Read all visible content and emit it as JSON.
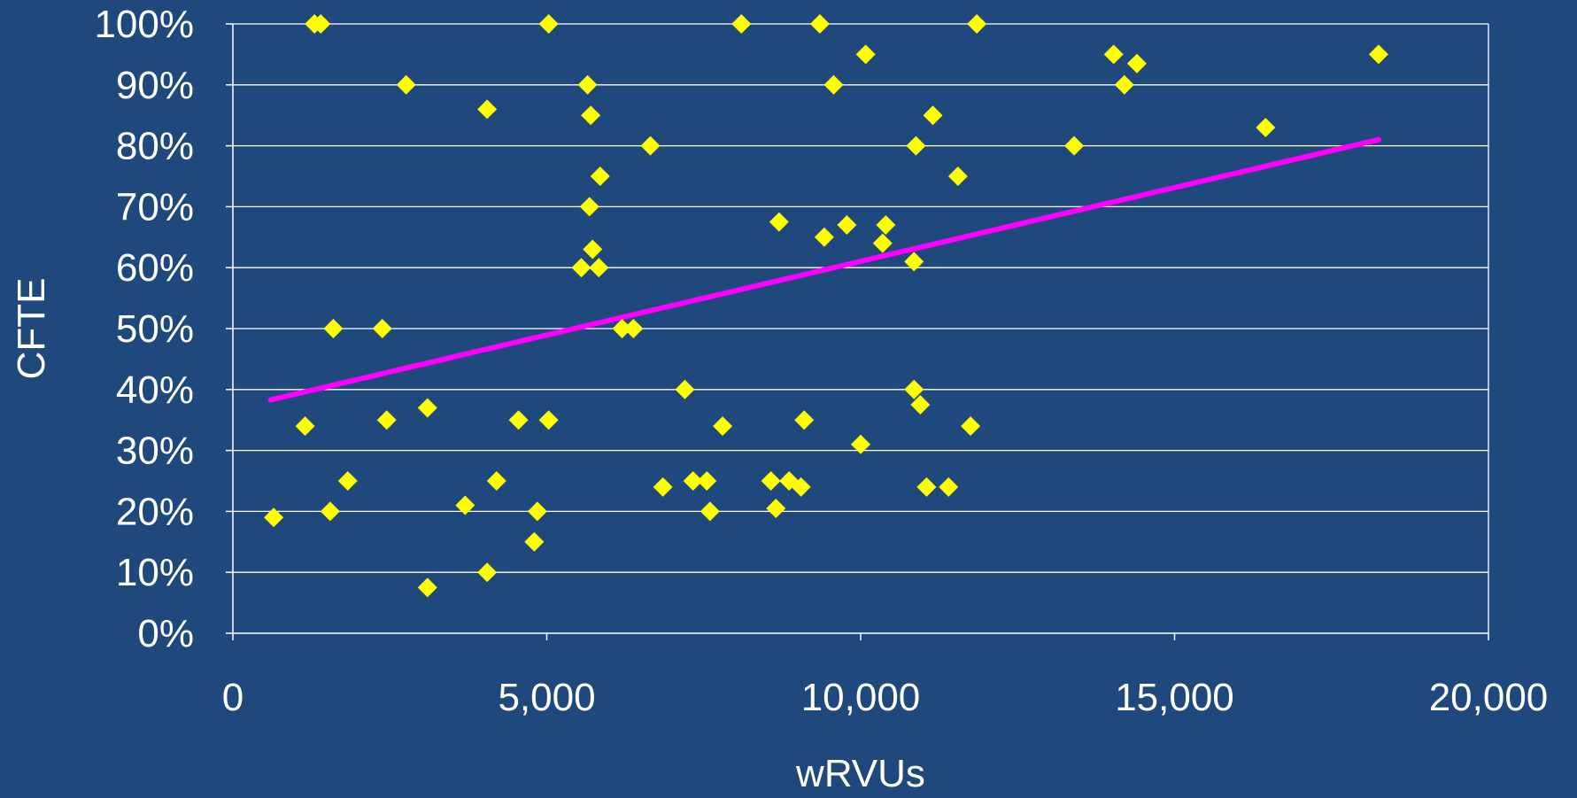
{
  "chart_data": {
    "type": "scatter",
    "title": "",
    "xlabel": "wRVUs",
    "ylabel": "CFTE",
    "xlim": [
      0,
      20000
    ],
    "ylim": [
      0,
      1
    ],
    "x_ticks": [
      0,
      5000,
      10000,
      15000,
      20000
    ],
    "x_tick_labels": [
      "0",
      "5,000",
      "10,000",
      "15,000",
      "20,000"
    ],
    "y_ticks": [
      0,
      0.1,
      0.2,
      0.3,
      0.4,
      0.5,
      0.6,
      0.7,
      0.8,
      0.9,
      1.0
    ],
    "y_tick_labels": [
      "0%",
      "10%",
      "20%",
      "30%",
      "40%",
      "50%",
      "60%",
      "70%",
      "80%",
      "90%",
      "100%"
    ],
    "grid": "horizontal",
    "legend": "none",
    "colors": {
      "background": "#1f497d",
      "marker": "#ffff00",
      "trendline": "#ff00ff",
      "axes": "#ffffff",
      "text": "#ffffff"
    },
    "marker_shape": "diamond",
    "series": [
      {
        "points": [
          [
            650,
            0.19
          ],
          [
            1150,
            0.34
          ],
          [
            1300,
            1.0
          ],
          [
            1400,
            1.0
          ],
          [
            1550,
            0.2
          ],
          [
            1600,
            0.5
          ],
          [
            1830,
            0.25
          ],
          [
            2380,
            0.5
          ],
          [
            2450,
            0.35
          ],
          [
            2760,
            0.9
          ],
          [
            3100,
            0.37
          ],
          [
            3100,
            0.075
          ],
          [
            3700,
            0.21
          ],
          [
            4050,
            0.86
          ],
          [
            4050,
            0.1
          ],
          [
            4200,
            0.25
          ],
          [
            4550,
            0.35
          ],
          [
            4800,
            0.15
          ],
          [
            4850,
            0.2
          ],
          [
            5030,
            1.0
          ],
          [
            5030,
            0.35
          ],
          [
            5550,
            0.6
          ],
          [
            5650,
            0.9
          ],
          [
            5680,
            0.7
          ],
          [
            5700,
            0.85
          ],
          [
            5730,
            0.63
          ],
          [
            5830,
            0.6
          ],
          [
            5850,
            0.75
          ],
          [
            6200,
            0.5
          ],
          [
            6380,
            0.5
          ],
          [
            6650,
            0.8
          ],
          [
            6850,
            0.24
          ],
          [
            7200,
            0.4
          ],
          [
            7330,
            0.25
          ],
          [
            7550,
            0.25
          ],
          [
            7600,
            0.2
          ],
          [
            7800,
            0.34
          ],
          [
            8100,
            1.0
          ],
          [
            8570,
            0.25
          ],
          [
            8650,
            0.205
          ],
          [
            8700,
            0.675
          ],
          [
            8860,
            0.25
          ],
          [
            9050,
            0.24
          ],
          [
            9100,
            0.35
          ],
          [
            9350,
            1.0
          ],
          [
            9420,
            0.65
          ],
          [
            9570,
            0.9
          ],
          [
            9780,
            0.67
          ],
          [
            10000,
            0.31
          ],
          [
            10080,
            0.95
          ],
          [
            10350,
            0.64
          ],
          [
            10400,
            0.67
          ],
          [
            10850,
            0.61
          ],
          [
            10850,
            0.4
          ],
          [
            10880,
            0.8
          ],
          [
            10950,
            0.375
          ],
          [
            11050,
            0.24
          ],
          [
            11150,
            0.85
          ],
          [
            11400,
            0.24
          ],
          [
            11550,
            0.75
          ],
          [
            11750,
            0.34
          ],
          [
            11850,
            1.0
          ],
          [
            13400,
            0.8
          ],
          [
            14030,
            0.95
          ],
          [
            14200,
            0.9
          ],
          [
            14400,
            0.935
          ],
          [
            16450,
            0.83
          ],
          [
            18250,
            0.95
          ]
        ]
      }
    ],
    "trendline": {
      "type": "linear",
      "x": [
        600,
        18250
      ],
      "y": [
        0.383,
        0.81
      ]
    }
  }
}
